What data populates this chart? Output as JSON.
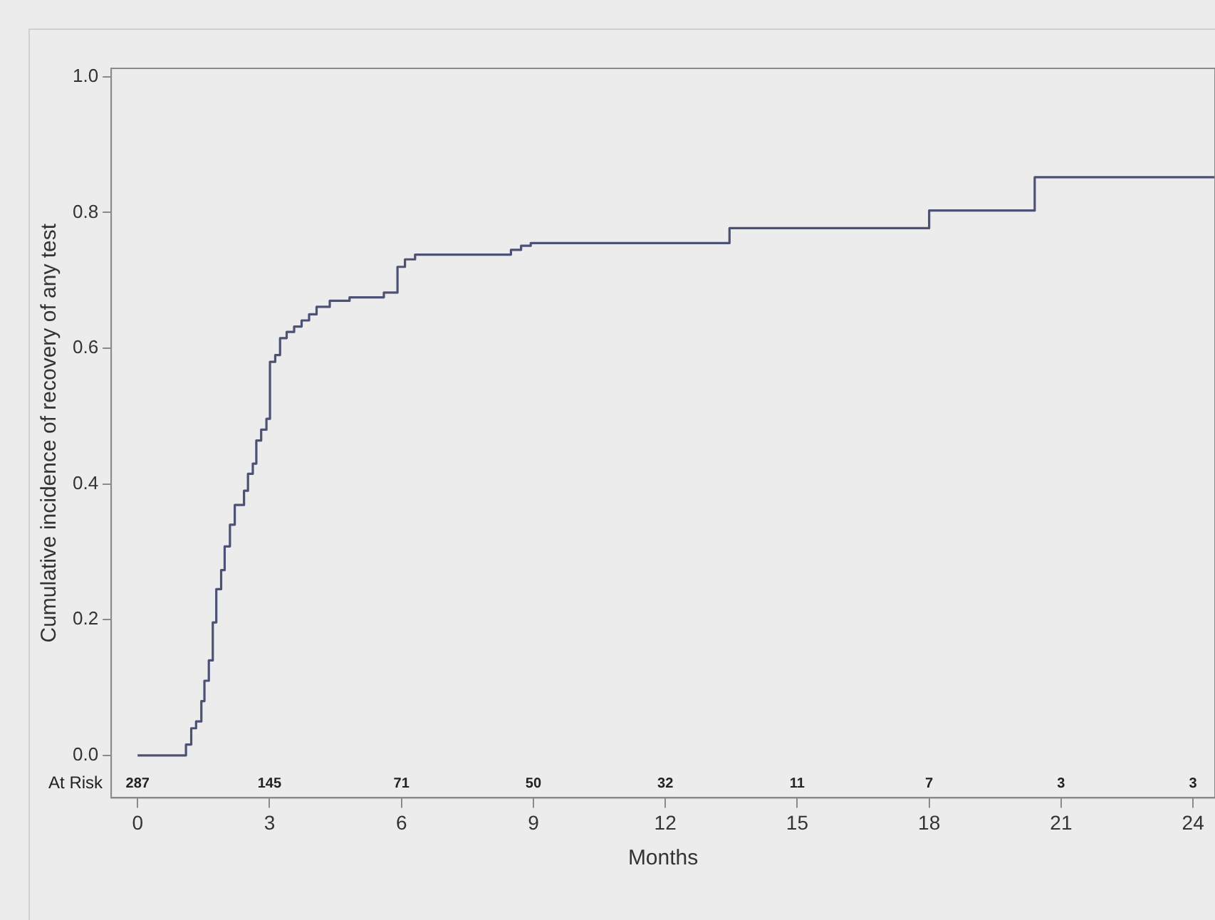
{
  "chart_data": {
    "type": "step",
    "xlabel": "Months",
    "ylabel": "Cumulative incidence of recovery of any test",
    "series": [
      {
        "color": "#4b5275",
        "x": [
          0,
          0.76,
          1.1,
          1.22,
          1.33,
          1.45,
          1.52,
          1.62,
          1.71,
          1.79,
          1.9,
          1.98,
          2.1,
          2.21,
          2.42,
          2.51,
          2.62,
          2.7,
          2.81,
          2.93,
          3.01,
          3.13,
          3.24,
          3.39,
          3.56,
          3.73,
          3.9,
          4.07,
          4.37,
          4.82,
          5.6,
          5.91,
          6.08,
          6.31,
          8.49,
          8.72,
          8.94,
          13.46,
          18.0,
          20.4,
          24.5
        ],
        "values": [
          0,
          0,
          0.016,
          0.04,
          0.05,
          0.08,
          0.11,
          0.14,
          0.196,
          0.245,
          0.273,
          0.308,
          0.34,
          0.369,
          0.39,
          0.415,
          0.43,
          0.464,
          0.48,
          0.496,
          0.58,
          0.59,
          0.615,
          0.624,
          0.632,
          0.641,
          0.65,
          0.661,
          0.67,
          0.675,
          0.682,
          0.72,
          0.731,
          0.738,
          0.745,
          0.751,
          0.755,
          0.777,
          0.803,
          0.852,
          0.852
        ]
      }
    ],
    "xlim": [
      -0.6,
      24.5
    ],
    "xticks": [
      0,
      3,
      6,
      9,
      12,
      15,
      18,
      21,
      24
    ],
    "ylim": [
      -0.0625,
      1.0125
    ],
    "yticks": [
      {
        "value": 0,
        "label": "0.0"
      },
      {
        "value": 0.2,
        "label": "0.2"
      },
      {
        "value": 0.4,
        "label": "0.4"
      },
      {
        "value": 0.6,
        "label": "0.6"
      },
      {
        "value": 0.8,
        "label": "0.8"
      },
      {
        "value": 1,
        "label": "1.0"
      }
    ],
    "annotations": [
      "At Risk",
      "287",
      "145",
      "71",
      "50",
      "32",
      "11",
      "7",
      "3",
      "3"
    ],
    "grid": false,
    "legend": false,
    "line_style": "solid",
    "marker": "none"
  }
}
